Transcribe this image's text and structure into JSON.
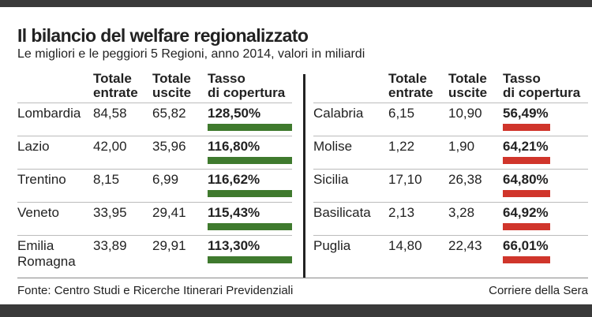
{
  "title": "Il bilancio del welfare regionalizzato",
  "subtitle": "Le migliori e le peggiori 5 Regioni, anno 2014, valori in miliardi",
  "tables": [
    {
      "columns": [
        [
          "Totale",
          "entrate"
        ],
        [
          "Totale",
          "uscite"
        ],
        [
          "Tasso",
          "di copertura"
        ]
      ],
      "rows": [
        [
          "Lombardia",
          "84,58",
          "65,82",
          "128,50%"
        ],
        [
          "Lazio",
          "42,00",
          "35,96",
          "116,80%"
        ],
        [
          "Trentino",
          "8,15",
          "6,99",
          "116,62%"
        ],
        [
          "Veneto",
          "33,95",
          "29,41",
          "115,43%"
        ],
        [
          "Emilia Romagna",
          "33,89",
          "29,91",
          "113,30%"
        ]
      ]
    },
    {
      "columns": [
        [
          "Totale",
          "entrate"
        ],
        [
          "Totale",
          "uscite"
        ],
        [
          "Tasso",
          "di copertura"
        ]
      ],
      "rows": [
        [
          "Calabria",
          "6,15",
          "10,90",
          "56,49%"
        ],
        [
          "Molise",
          "1,22",
          "1,90",
          "64,21%"
        ],
        [
          "Sicilia",
          "17,10",
          "26,38",
          "64,80%"
        ],
        [
          "Basilicata",
          "2,13",
          "3,28",
          "64,92%"
        ],
        [
          "Puglia",
          "14,80",
          "22,43",
          "66,01%"
        ]
      ]
    }
  ],
  "footer": {
    "source": "Fonte: Centro Studi e Ricerche Itinerari Previdenziali",
    "credit": "Corriere della Sera"
  }
}
